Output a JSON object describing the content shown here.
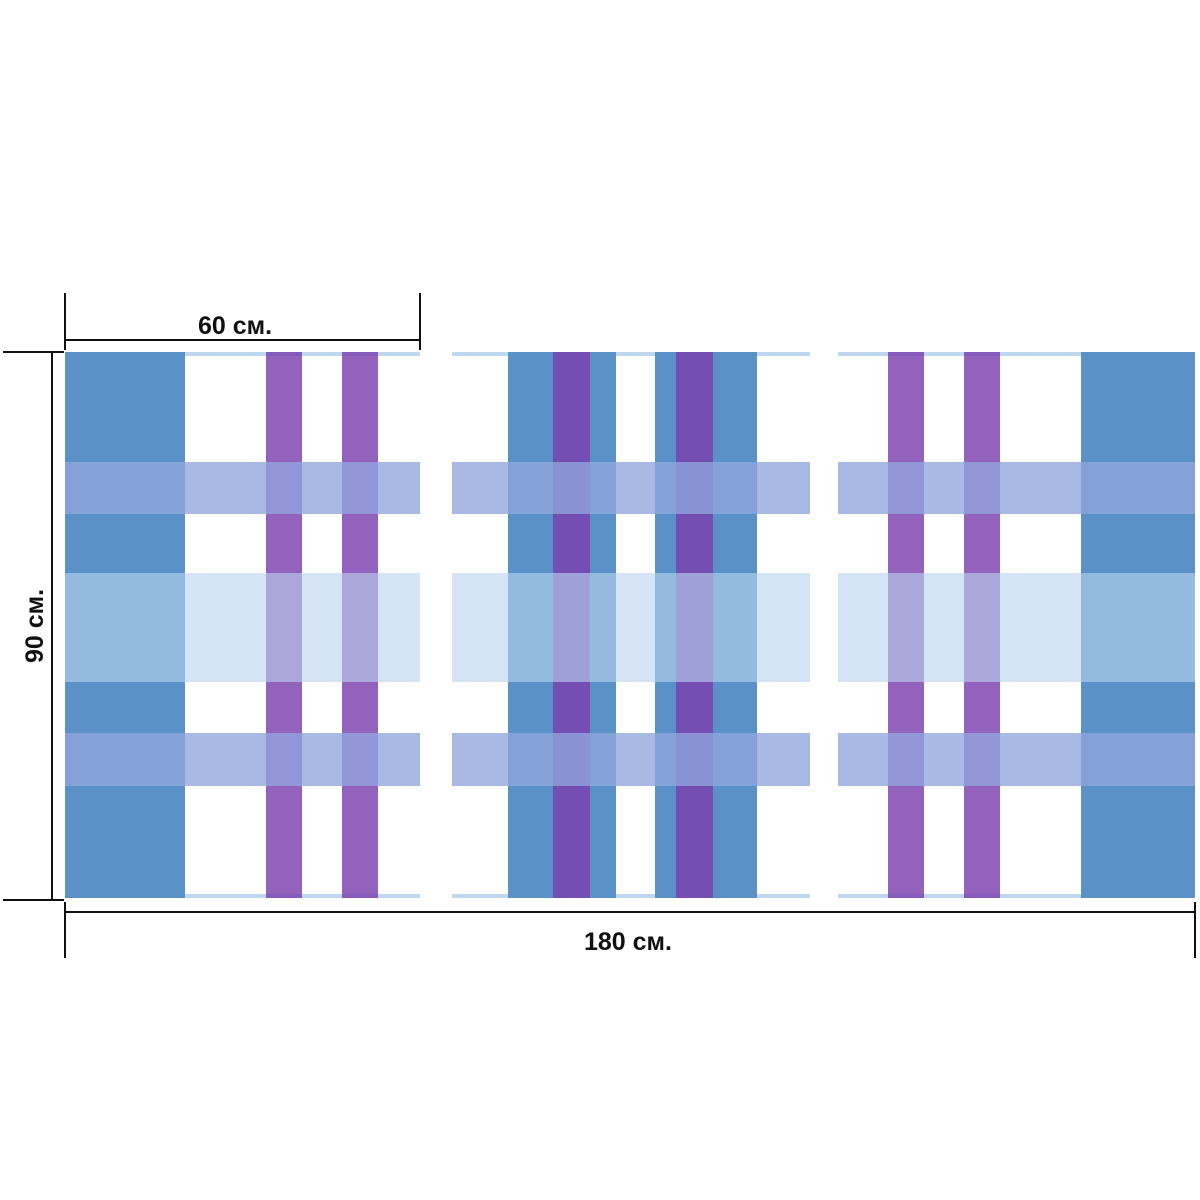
{
  "dimensions": {
    "panel_width_label": "60 см.",
    "total_width_label": "180 см.",
    "height_label": "90 см."
  },
  "panels": {
    "count": 3,
    "pattern": "plaid"
  },
  "colors": {
    "blue": "#5a91c7",
    "purple": "#7a3fae",
    "band_periwinkle": "#8fa5dc",
    "band_pale_blue": "#b9d3ee",
    "background": "#ffffff",
    "dimension_lines": "#111111"
  }
}
